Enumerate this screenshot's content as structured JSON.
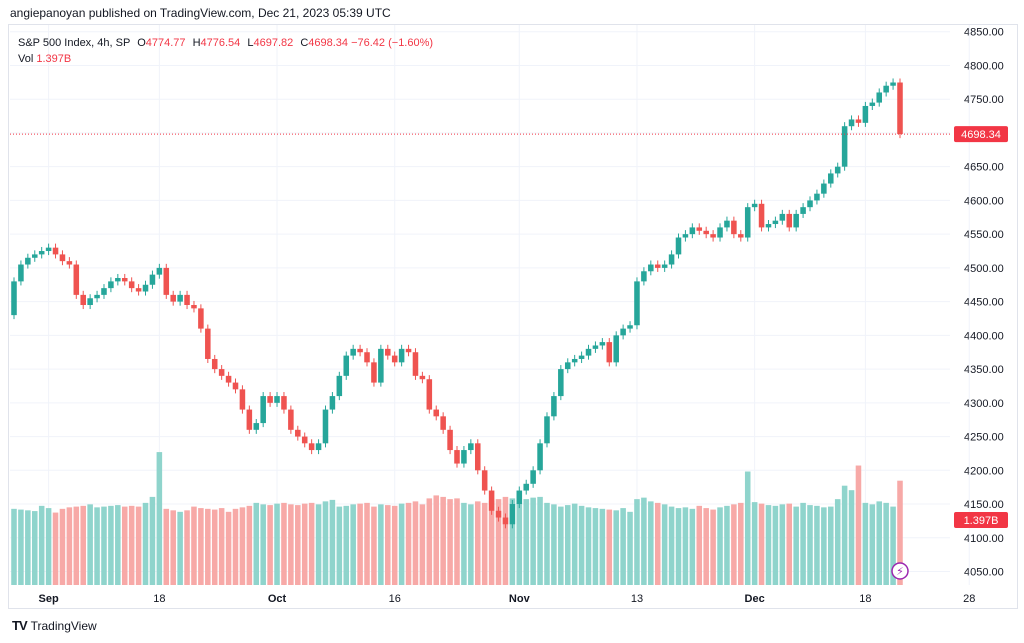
{
  "publisher_line": "angiepanoyan published on TradingView.com, Dec 21, 2023 05:39 UTC",
  "legend": {
    "symbol": "S&P 500 Index, 4h, SP",
    "o_label": "O",
    "o_value": "4774.77",
    "h_label": "H",
    "h_value": "4776.54",
    "l_label": "L",
    "l_value": "4697.82",
    "c_label": "C",
    "c_value": "4698.34",
    "change": "−76.42 (−1.60%)",
    "vol_label": "Vol",
    "vol_value": "1.397B"
  },
  "footer": {
    "logo_text": "TV",
    "brand": "TradingView"
  },
  "colors": {
    "up": "#26a69a",
    "down": "#ef5350",
    "vol_up": "#8fd4cc",
    "vol_down": "#f7a9a7",
    "price_tag": "#f23645",
    "grid": "#f0f3fa",
    "axis_text": "#131722"
  },
  "chart_data": {
    "type": "candlestick",
    "y_ticks": [
      "4850.00",
      "4800.00",
      "4750.00",
      "4700.00",
      "4650.00",
      "4600.00",
      "4550.00",
      "4500.00",
      "4450.00",
      "4400.00",
      "4350.00",
      "4300.00",
      "4250.00",
      "4200.00",
      "4150.00",
      "4100.00",
      "4050.00"
    ],
    "x_ticks": [
      "Sep",
      "18",
      "Oct",
      "16",
      "Nov",
      "13",
      "Dec",
      "18",
      "28"
    ],
    "bold_x_ticks": [
      "Sep",
      "Oct",
      "Nov",
      "Dec"
    ],
    "ylim": [
      4030,
      4860
    ],
    "last_price": "4698.34",
    "last_volume": "1.397B",
    "closes": [
      4480,
      4505,
      4515,
      4520,
      4525,
      4530,
      4520,
      4510,
      4505,
      4460,
      4445,
      4455,
      4460,
      4470,
      4480,
      4485,
      4480,
      4470,
      4465,
      4475,
      4490,
      4500,
      4460,
      4450,
      4460,
      4445,
      4440,
      4410,
      4365,
      4350,
      4340,
      4330,
      4320,
      4290,
      4260,
      4270,
      4310,
      4300,
      4310,
      4290,
      4260,
      4250,
      4240,
      4230,
      4240,
      4290,
      4310,
      4340,
      4370,
      4380,
      4375,
      4360,
      4330,
      4380,
      4370,
      4360,
      4380,
      4375,
      4340,
      4335,
      4290,
      4280,
      4260,
      4230,
      4210,
      4230,
      4240,
      4200,
      4170,
      4140,
      4130,
      4120,
      4150,
      4170,
      4180,
      4200,
      4240,
      4280,
      4310,
      4350,
      4360,
      4365,
      4370,
      4380,
      4385,
      4390,
      4360,
      4400,
      4410,
      4415,
      4480,
      4495,
      4505,
      4500,
      4505,
      4520,
      4545,
      4550,
      4560,
      4555,
      4550,
      4545,
      4560,
      4570,
      4550,
      4545,
      4590,
      4595,
      4560,
      4565,
      4570,
      4580,
      4560,
      4580,
      4590,
      4600,
      4610,
      4625,
      4640,
      4650,
      4710,
      4720,
      4715,
      4740,
      4745,
      4760,
      4770,
      4774.77,
      4698.34
    ],
    "volumes_b": [
      1.02,
      1.01,
      1.0,
      0.99,
      1.06,
      1.03,
      0.97,
      1.02,
      1.04,
      1.05,
      1.06,
      1.08,
      1.04,
      1.05,
      1.06,
      1.07,
      1.05,
      1.06,
      1.05,
      1.1,
      1.18,
      1.78,
      1.02,
      1.0,
      0.98,
      1.0,
      1.05,
      1.03,
      1.02,
      1.01,
      1.03,
      0.98,
      1.02,
      1.04,
      1.06,
      1.1,
      1.08,
      1.07,
      1.09,
      1.1,
      1.08,
      1.07,
      1.09,
      1.1,
      1.08,
      1.12,
      1.14,
      1.05,
      1.06,
      1.08,
      1.09,
      1.1,
      1.05,
      1.08,
      1.07,
      1.06,
      1.09,
      1.1,
      1.12,
      1.08,
      1.16,
      1.2,
      1.18,
      1.15,
      1.16,
      1.1,
      1.08,
      1.12,
      1.1,
      1.13,
      1.15,
      1.18,
      1.16,
      1.14,
      1.15,
      1.17,
      1.18,
      1.1,
      1.08,
      1.05,
      1.07,
      1.09,
      1.06,
      1.04,
      1.03,
      1.02,
      1.01,
      1.0,
      1.03,
      0.98,
      1.15,
      1.17,
      1.12,
      1.1,
      1.08,
      1.05,
      1.03,
      1.04,
      1.02,
      1.06,
      1.03,
      1.01,
      1.04,
      1.06,
      1.08,
      1.1,
      1.52,
      1.11,
      1.09,
      1.07,
      1.06,
      1.08,
      1.09,
      1.05,
      1.1,
      1.07,
      1.06,
      1.04,
      1.05,
      1.15,
      1.33,
      1.27,
      1.6,
      1.1,
      1.08,
      1.12,
      1.1,
      1.05,
      1.397
    ]
  }
}
